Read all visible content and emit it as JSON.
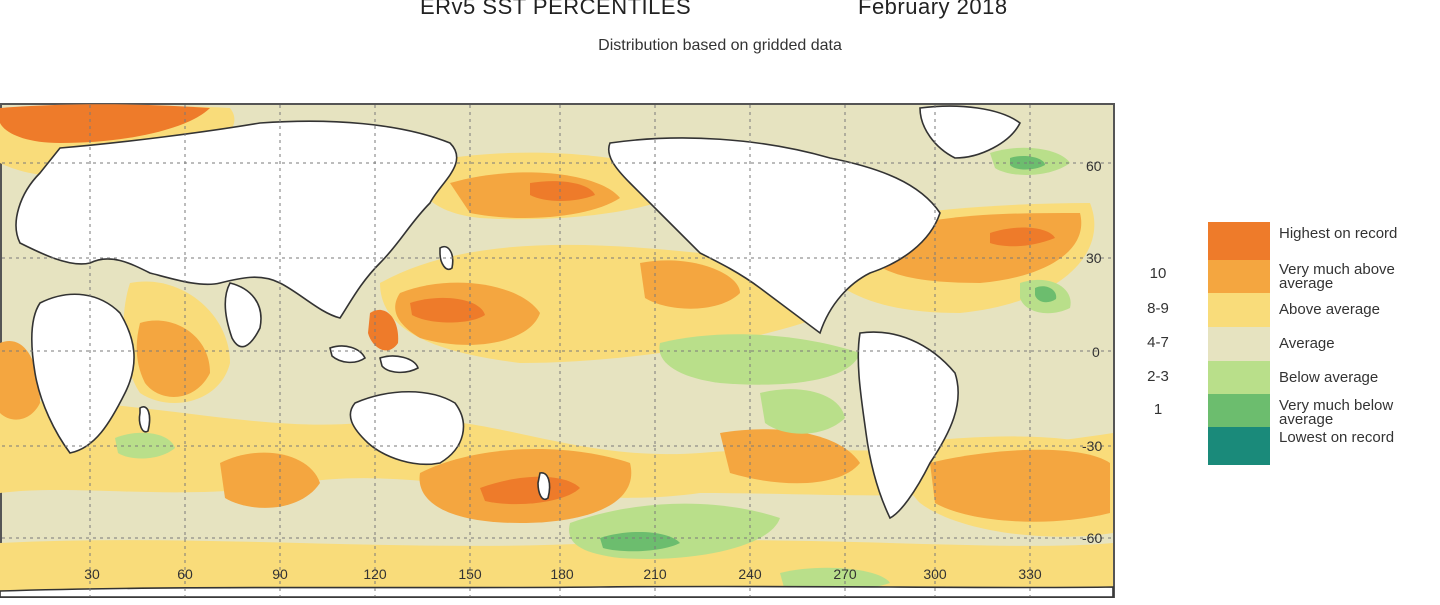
{
  "header": {
    "title": "ERv5 SST PERCENTILES",
    "date": "February 2018",
    "subtitle": "Distribution based on gridded data"
  },
  "map": {
    "x_ticks": [
      "30",
      "60",
      "90",
      "120",
      "150",
      "180",
      "210",
      "240",
      "270",
      "300",
      "330"
    ],
    "y_ticks": [
      "60",
      "30",
      "0",
      "-30",
      "-60"
    ]
  },
  "legend": {
    "items": [
      {
        "label": "Highest on record",
        "number": "",
        "color": "#ee7b2a"
      },
      {
        "label": "Very much above average",
        "number": "10",
        "color": "#f4a640"
      },
      {
        "label": "Above average",
        "number": "8-9",
        "color": "#f9dc7a"
      },
      {
        "label": "Average",
        "number": "4-7",
        "color": "#e6e3c0"
      },
      {
        "label": "Below average",
        "number": "2-3",
        "color": "#b9df8a"
      },
      {
        "label": "Very much below average",
        "number": "1",
        "color": "#6cbd6e"
      },
      {
        "label": "Lowest on record",
        "number": "",
        "color": "#1a8a7a"
      }
    ]
  },
  "colors": {
    "land": "#ffffff",
    "coastline": "#333333",
    "grid": "#7a7a7a"
  }
}
